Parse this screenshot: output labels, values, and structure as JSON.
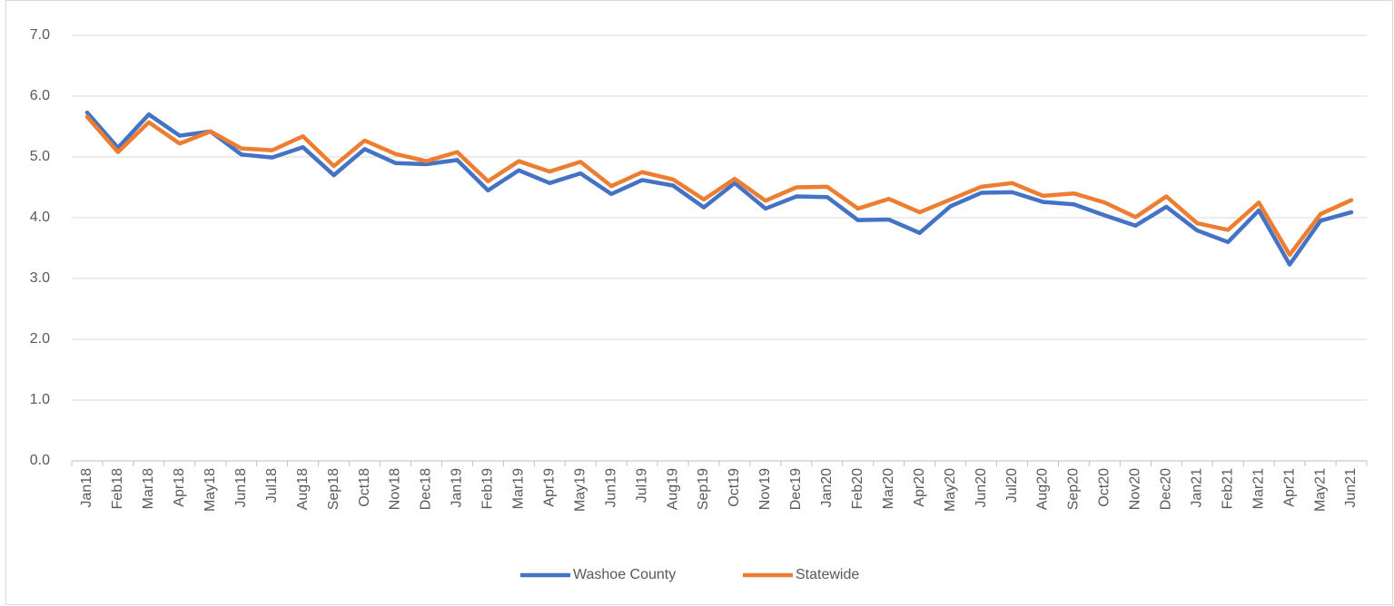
{
  "chart_data": {
    "type": "line",
    "categories": [
      "Jan18",
      "Feb18",
      "Mar18",
      "Apr18",
      "May18",
      "Jun18",
      "Jul18",
      "Aug18",
      "Sep18",
      "Oct18",
      "Nov18",
      "Dec18",
      "Jan19",
      "Feb19",
      "Mar19",
      "Apr19",
      "May19",
      "Jun19",
      "Jul19",
      "Aug19",
      "Sep19",
      "Oct19",
      "Nov19",
      "Dec19",
      "Jan20",
      "Feb20",
      "Mar20",
      "Apr20",
      "May20",
      "Jun20",
      "Jul20",
      "Aug20",
      "Sep20",
      "Oct20",
      "Nov20",
      "Dec20",
      "Jan21",
      "Feb21",
      "Mar21",
      "Apr21",
      "May21",
      "Jun21"
    ],
    "series": [
      {
        "name": "Washoe County",
        "color": "#4472c4",
        "values": [
          5.73,
          5.15,
          5.7,
          5.35,
          5.42,
          5.04,
          4.99,
          5.16,
          4.7,
          5.13,
          4.9,
          4.88,
          4.95,
          4.45,
          4.78,
          4.57,
          4.73,
          4.39,
          4.62,
          4.53,
          4.17,
          4.57,
          4.15,
          4.35,
          4.34,
          3.96,
          3.97,
          3.75,
          4.19,
          4.41,
          4.42,
          4.26,
          4.22,
          4.04,
          3.87,
          4.18,
          3.79,
          3.6,
          4.12,
          3.23,
          3.95,
          4.09
        ]
      },
      {
        "name": "Statewide",
        "color": "#ed7d31",
        "values": [
          5.66,
          5.08,
          5.57,
          5.22,
          5.42,
          5.14,
          5.11,
          5.34,
          4.85,
          5.27,
          5.05,
          4.93,
          5.08,
          4.6,
          4.93,
          4.76,
          4.92,
          4.52,
          4.75,
          4.63,
          4.3,
          4.64,
          4.28,
          4.5,
          4.51,
          4.15,
          4.31,
          4.09,
          4.3,
          4.51,
          4.57,
          4.36,
          4.4,
          4.25,
          4.01,
          4.35,
          3.91,
          3.8,
          4.25,
          3.39,
          4.06,
          4.29
        ]
      }
    ],
    "ylim": [
      0,
      7
    ],
    "yticks": [
      {
        "value": 0,
        "label": "0.0"
      },
      {
        "value": 1,
        "label": "1.0"
      },
      {
        "value": 2,
        "label": "2.0"
      },
      {
        "value": 3,
        "label": "3.0"
      },
      {
        "value": 4,
        "label": "4.0"
      },
      {
        "value": 5,
        "label": "5.0"
      },
      {
        "value": 6,
        "label": "6.0"
      },
      {
        "value": 7,
        "label": "7.0"
      }
    ],
    "grid": true,
    "legend": "bottom"
  }
}
